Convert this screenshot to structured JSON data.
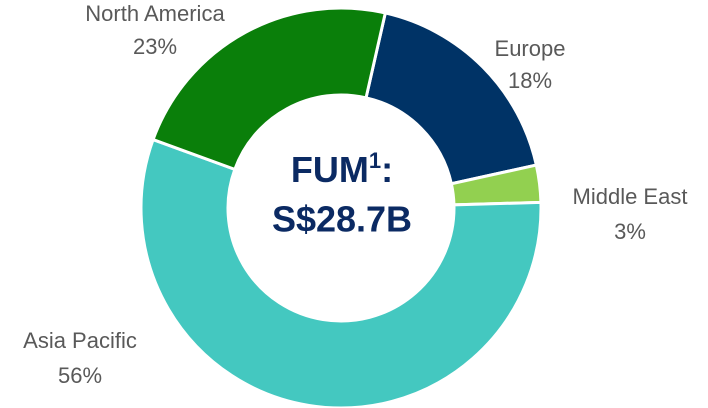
{
  "chart_data": {
    "type": "donut",
    "center_label": {
      "text": "FUM",
      "footnote": "1",
      "suffix": ":"
    },
    "center_value": "S$28.7B",
    "categories": [
      "Europe",
      "Middle East",
      "Asia Pacific",
      "North America"
    ],
    "values": [
      18,
      3,
      56,
      23
    ],
    "value_labels": [
      "18%",
      "3%",
      "56%",
      "23%"
    ],
    "colors": [
      "#003366",
      "#92d050",
      "#44c8c0",
      "#0a7f0a"
    ]
  }
}
